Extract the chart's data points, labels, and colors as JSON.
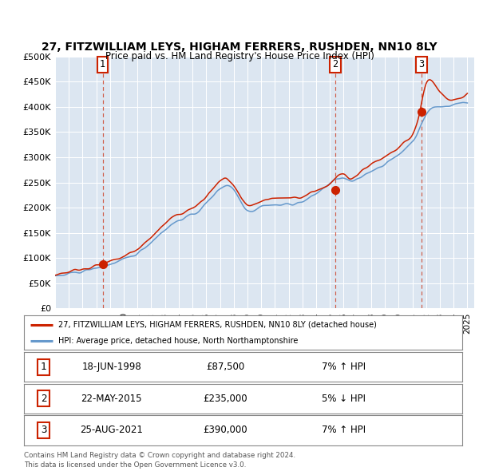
{
  "title1": "27, FITZWILLIAM LEYS, HIGHAM FERRERS, RUSHDEN, NN10 8LY",
  "title2": "Price paid vs. HM Land Registry's House Price Index (HPI)",
  "plot_bg_color": "#dce6f1",
  "fig_bg_color": "#ffffff",
  "line_color_property": "#cc2200",
  "line_color_hpi": "#6699cc",
  "sale_years": [
    1998.46,
    2015.38,
    2021.65
  ],
  "sale_prices": [
    87500,
    235000,
    390000
  ],
  "sale_labels": [
    "1",
    "2",
    "3"
  ],
  "legend_property": "27, FITZWILLIAM LEYS, HIGHAM FERRERS, RUSHDEN, NN10 8LY (detached house)",
  "legend_hpi": "HPI: Average price, detached house, North Northamptonshire",
  "table_rows": [
    [
      "1",
      "18-JUN-1998",
      "£87,500",
      "7% ↑ HPI"
    ],
    [
      "2",
      "22-MAY-2015",
      "£235,000",
      "5% ↓ HPI"
    ],
    [
      "3",
      "25-AUG-2021",
      "£390,000",
      "7% ↑ HPI"
    ]
  ],
  "footer": "Contains HM Land Registry data © Crown copyright and database right 2024.\nThis data is licensed under the Open Government Licence v3.0.",
  "yticks": [
    0,
    50000,
    100000,
    150000,
    200000,
    250000,
    300000,
    350000,
    400000,
    450000,
    500000
  ],
  "ytick_labels": [
    "£0",
    "£50K",
    "£100K",
    "£150K",
    "£200K",
    "£250K",
    "£300K",
    "£350K",
    "£400K",
    "£450K",
    "£500K"
  ],
  "xmin": 1995,
  "xmax": 2025.5,
  "ymin": 0,
  "ymax": 500000
}
